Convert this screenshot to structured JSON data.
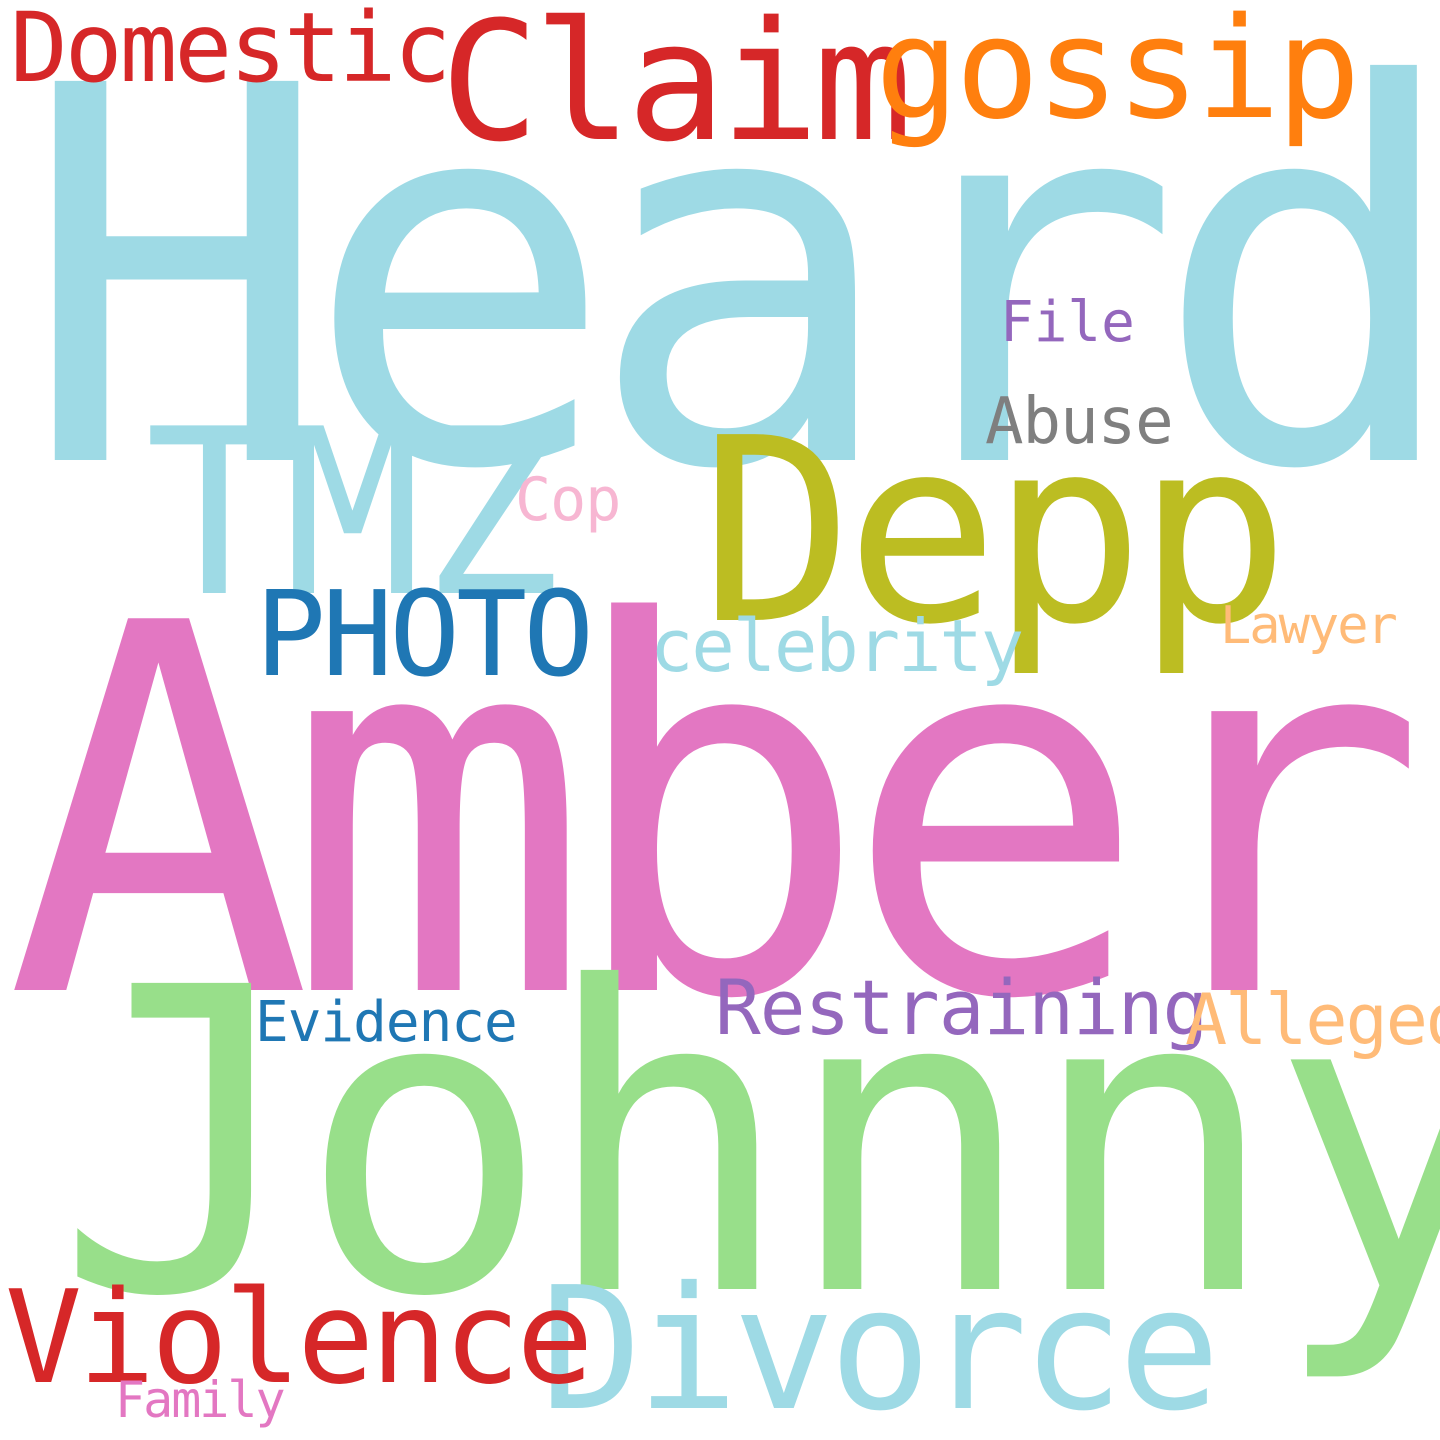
{
  "words": {
    "heard": {
      "text": "Heard",
      "color": "#9edae5"
    },
    "amber": {
      "text": "Amber",
      "color": "#e377c2"
    },
    "johnny": {
      "text": "Johnny",
      "color": "#98df8a"
    },
    "depp": {
      "text": "Depp",
      "color": "#bcbd22"
    },
    "tmz": {
      "text": "TMZ",
      "color": "#9edae5"
    },
    "claim": {
      "text": "Claim",
      "color": "#d62728"
    },
    "gossip": {
      "text": "gossip",
      "color": "#ff7f0e"
    },
    "domestic": {
      "text": "Domestic",
      "color": "#d62728"
    },
    "divorce": {
      "text": "Divorce",
      "color": "#9edae5"
    },
    "violence": {
      "text": "Violence",
      "color": "#d62728"
    },
    "photo": {
      "text": "PHOTO",
      "color": "#1f77b4"
    },
    "restraining": {
      "text": "Restraining",
      "color": "#9467bd"
    },
    "alleged": {
      "text": "Alleged",
      "color": "#ffbb78"
    },
    "celebrity": {
      "text": "celebrity",
      "color": "#9edae5"
    },
    "evidence": {
      "text": "Evidence",
      "color": "#1f77b4"
    },
    "abuse": {
      "text": "Abuse",
      "color": "#7f7f7f"
    },
    "file": {
      "text": "File",
      "color": "#9467bd"
    },
    "cop": {
      "text": "Cop",
      "color": "#f7b6d2"
    },
    "lawyer": {
      "text": "Lawyer",
      "color": "#ffbb78"
    },
    "family": {
      "text": "Family",
      "color": "#e377c2"
    }
  }
}
